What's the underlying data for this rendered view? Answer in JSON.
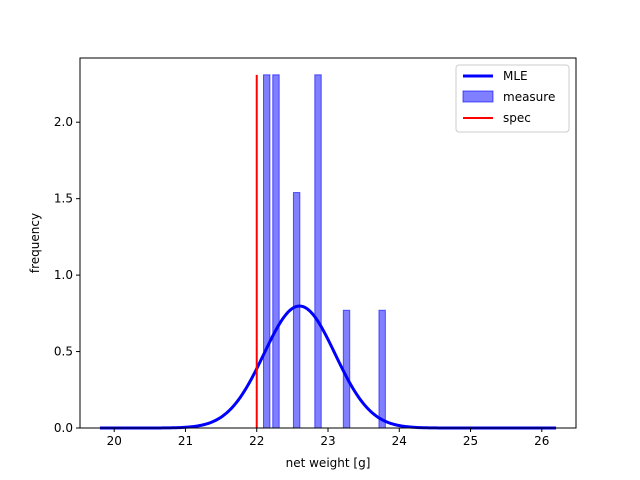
{
  "chart_data": {
    "type": "histogram",
    "xlabel": "net weight [g]",
    "ylabel": "frequency",
    "xlim": [
      19.52,
      26.48
    ],
    "ylim": [
      0,
      2.42
    ],
    "xticks": [
      "20",
      "21",
      "22",
      "23",
      "24",
      "25",
      "26"
    ],
    "yticks": [
      "0.0",
      "0.5",
      "1.0",
      "1.5",
      "2.0"
    ],
    "legend_position": "top-right",
    "series": [
      {
        "name": "MLE",
        "kind": "line",
        "color": "#0000ff",
        "mean": 22.6,
        "sd": 0.5,
        "x_range": [
          19.8,
          26.2
        ]
      },
      {
        "name": "measure",
        "kind": "bar",
        "color": "#0000ff",
        "bar_width": 0.09,
        "bars": [
          {
            "x": 22.14,
            "value": 2.31
          },
          {
            "x": 22.27,
            "value": 2.31
          },
          {
            "x": 22.56,
            "value": 1.54
          },
          {
            "x": 22.86,
            "value": 2.31
          },
          {
            "x": 23.26,
            "value": 0.77
          },
          {
            "x": 23.76,
            "value": 0.77
          }
        ]
      },
      {
        "name": "spec",
        "kind": "vline",
        "color": "#ff0000",
        "x": 22.0,
        "y_top": 2.31
      }
    ]
  }
}
